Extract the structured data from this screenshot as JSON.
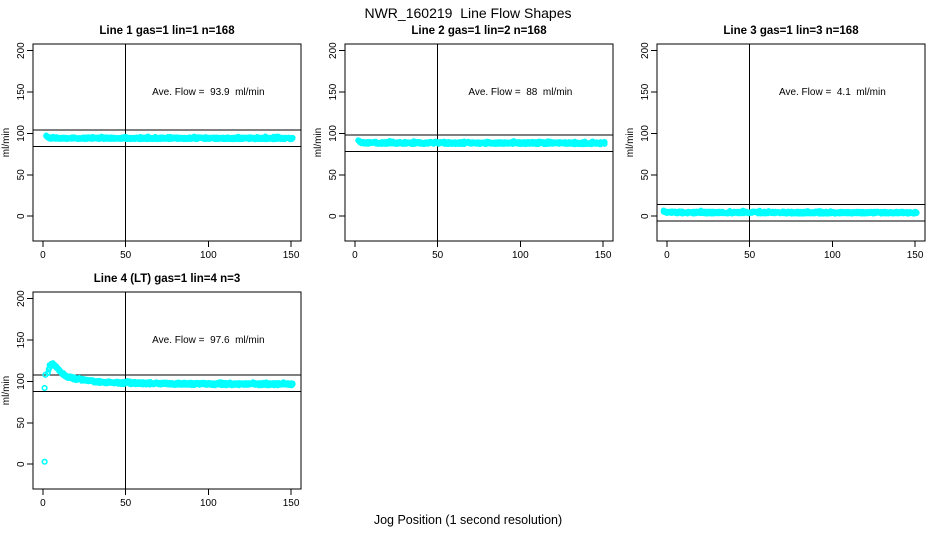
{
  "figure": {
    "title": "NWR_160219  Line Flow Shapes",
    "xlabel": "Jog Position (1 second resolution)",
    "colors": {
      "marker": "#00FFFF",
      "axis": "#000000",
      "background": "#FFFFFF"
    }
  },
  "chart_data": [
    {
      "type": "scatter",
      "title": "Line 1 gas=1 lin=1 n=168",
      "ylabel": "ml/min",
      "annotation": "Ave. Flow =  93.9  ml/min",
      "ave_flow": 93.9,
      "ref_lines_y": [
        103.9,
        83.9
      ],
      "ref_line_x": 50,
      "xlim": [
        -6,
        156
      ],
      "ylim": [
        -30,
        208
      ],
      "xticks": [
        0,
        50,
        100,
        150
      ],
      "yticks": [
        0,
        50,
        100,
        150,
        200
      ],
      "grid": false,
      "band": {
        "x_start": 2,
        "x_end": 151,
        "jitter": 1.2,
        "seed": 101,
        "anchors": [
          [
            2,
            97.5
          ],
          [
            3,
            95.5
          ],
          [
            4,
            94.8
          ],
          [
            6,
            94.4
          ],
          [
            10,
            94.2
          ],
          [
            151,
            94
          ]
        ]
      },
      "extra_points": []
    },
    {
      "type": "scatter",
      "title": "Line 2 gas=1 lin=2 n=168",
      "ylabel": "ml/min",
      "annotation": "Ave. Flow =  88  ml/min",
      "ave_flow": 88,
      "ref_lines_y": [
        98,
        78
      ],
      "ref_line_x": 50,
      "xlim": [
        -6,
        156
      ],
      "ylim": [
        -30,
        208
      ],
      "xticks": [
        0,
        50,
        100,
        150
      ],
      "yticks": [
        0,
        50,
        100,
        150,
        200
      ],
      "grid": false,
      "band": {
        "x_start": 2,
        "x_end": 151,
        "jitter": 1.4,
        "seed": 202,
        "anchors": [
          [
            2,
            92.5
          ],
          [
            3,
            90
          ],
          [
            4,
            89
          ],
          [
            6,
            88.5
          ],
          [
            151,
            88.2
          ]
        ]
      },
      "extra_points": []
    },
    {
      "type": "scatter",
      "title": "Line 3 gas=1 lin=3 n=168",
      "ylabel": "ml/min",
      "annotation": "Ave. Flow =  4.1  ml/min",
      "ave_flow": 4.1,
      "ref_lines_y": [
        14.1,
        -5.9
      ],
      "ref_line_x": 50,
      "xlim": [
        -6,
        156
      ],
      "ylim": [
        -30,
        208
      ],
      "xticks": [
        0,
        50,
        100,
        150
      ],
      "yticks": [
        0,
        50,
        100,
        150,
        200
      ],
      "grid": false,
      "band": {
        "x_start": -2,
        "x_end": 151,
        "jitter": 1.3,
        "seed": 303,
        "anchors": [
          [
            -2,
            5.8
          ],
          [
            0,
            5
          ],
          [
            2,
            4.6
          ],
          [
            5,
            4.4
          ],
          [
            151,
            4.2
          ]
        ]
      },
      "extra_points": []
    },
    {
      "type": "scatter",
      "title": "Line 4 (LT) gas=1 lin=4 n=3",
      "ylabel": "ml/min",
      "annotation": "Ave. Flow =  97.6  ml/min",
      "ave_flow": 97.6,
      "ref_lines_y": [
        107.6,
        87.6
      ],
      "ref_line_x": 50,
      "xlim": [
        -6,
        156
      ],
      "ylim": [
        -30,
        208
      ],
      "xticks": [
        0,
        50,
        100,
        150
      ],
      "yticks": [
        0,
        50,
        100,
        150,
        200
      ],
      "grid": false,
      "band": {
        "x_start": 3,
        "x_end": 151,
        "jitter": 1.6,
        "seed": 404,
        "anchors": [
          [
            3,
            111
          ],
          [
            4,
            117
          ],
          [
            5,
            120.5
          ],
          [
            6,
            121
          ],
          [
            7,
            119.5
          ],
          [
            8,
            117
          ],
          [
            10,
            112.5
          ],
          [
            12,
            109
          ],
          [
            14,
            106.5
          ],
          [
            17,
            104.5
          ],
          [
            20,
            103
          ],
          [
            24,
            101.5
          ],
          [
            28,
            100.5
          ],
          [
            33,
            99.5
          ],
          [
            38,
            99
          ],
          [
            45,
            98.3
          ],
          [
            55,
            97.8
          ],
          [
            65,
            97.4
          ],
          [
            80,
            97.1
          ],
          [
            100,
            96.9
          ],
          [
            120,
            96.7
          ],
          [
            151,
            96.5
          ]
        ]
      },
      "extra_points": [
        [
          1,
          3
        ],
        [
          1,
          92
        ],
        [
          1.5,
          108
        ]
      ]
    }
  ]
}
